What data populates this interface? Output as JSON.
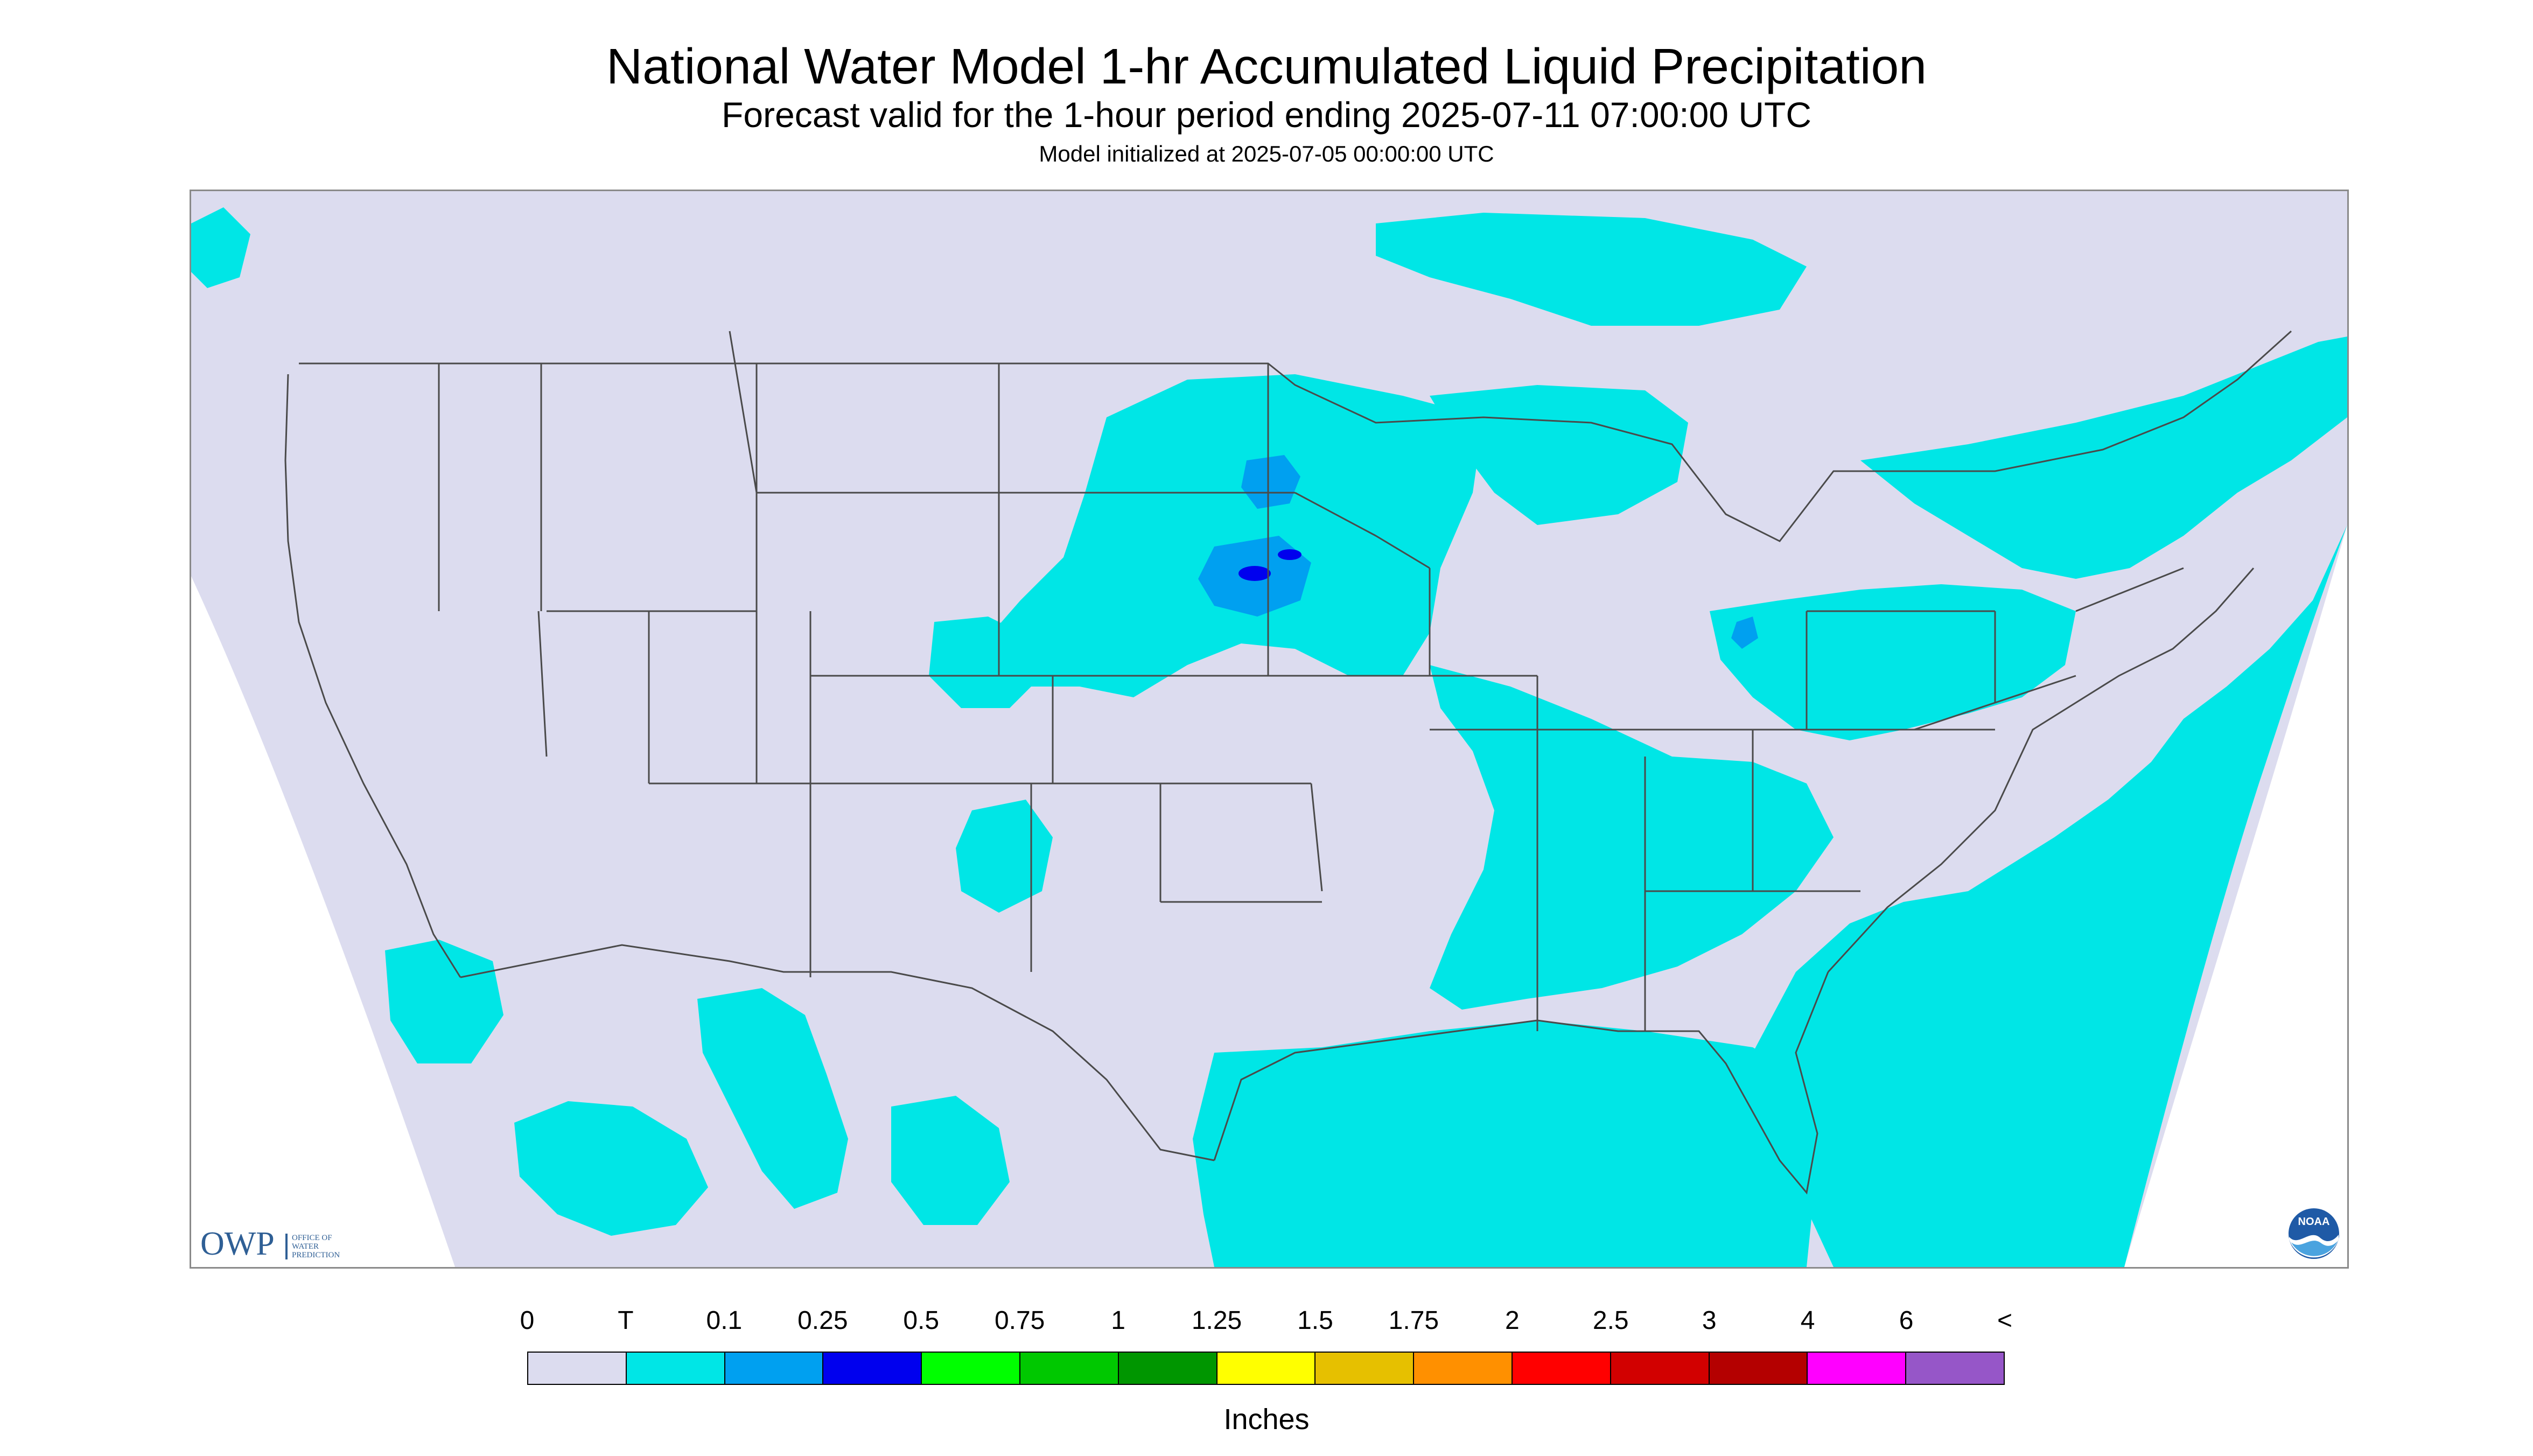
{
  "header": {
    "title": "National Water Model 1-hr Accumulated Liquid Precipitation",
    "subtitle": "Forecast valid for the 1-hour period ending 2025-07-11 07:00:00 UTC",
    "init": "Model initialized at 2025-07-05 00:00:00 UTC"
  },
  "map": {
    "region": "Continental United States",
    "background_color": "#dcdcef",
    "outside_domain_color": "#ffffff",
    "boundary_color": "#4a4a4a",
    "precip_colors": {
      "trace": "#00e6e6",
      "light": "#00a0f0",
      "moderate": "#0000ee"
    }
  },
  "logos": {
    "owp_mark": "OWP",
    "owp_text": [
      "Office of",
      "Water",
      "Prediction"
    ],
    "noaa_text": "NOAA"
  },
  "legend": {
    "tick_labels": [
      "0",
      "T",
      "0.1",
      "0.25",
      "0.5",
      "0.75",
      "1",
      "1.25",
      "1.5",
      "1.75",
      "2",
      "2.5",
      "3",
      "4",
      "6",
      "<"
    ],
    "colors": [
      "#dcdcef",
      "#00e6e6",
      "#00a0f0",
      "#0000ee",
      "#00ff00",
      "#00c800",
      "#009600",
      "#ffff00",
      "#e6c000",
      "#ff9000",
      "#ff0000",
      "#d20000",
      "#b40000",
      "#ff00ff",
      "#9656c8"
    ],
    "units": "Inches"
  }
}
